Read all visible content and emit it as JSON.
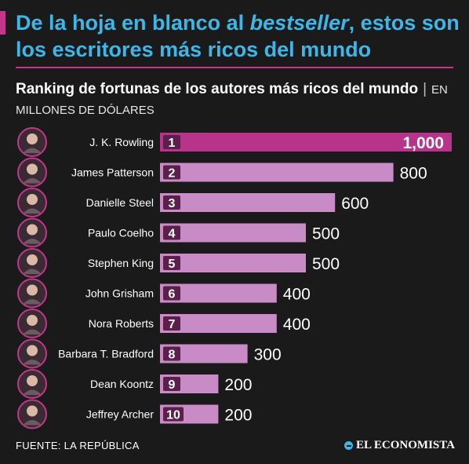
{
  "headline": {
    "part1": "De la hoja en blanco al ",
    "emphasis": "bestseller",
    "part2": ", estos son los escritores más ricos del mundo"
  },
  "subtitle": {
    "main": "Ranking de fortunas de los autores más ricos del mundo",
    "separator": "|",
    "unit": "EN MILLONES DE DÓLARES"
  },
  "colors": {
    "background": "#1a1a1a",
    "headline": "#3fb6e8",
    "accent": "#c2378a",
    "bar_top": "#b8338a",
    "bar": "#c98bc6",
    "rank_text": "#ffffff"
  },
  "chart_data": {
    "type": "bar",
    "orientation": "horizontal",
    "categories": [
      "J. K. Rowling",
      "James Patterson",
      "Danielle Steel",
      "Paulo Coelho",
      "Stephen King",
      "John Grisham",
      "Nora Roberts",
      "Barbara T. Bradford",
      "Dean Koontz",
      "Jeffrey Archer"
    ],
    "ranks": [
      "1",
      "2",
      "3",
      "4",
      "5",
      "6",
      "7",
      "8",
      "9",
      "10"
    ],
    "values": [
      1000,
      800,
      600,
      500,
      500,
      400,
      400,
      300,
      200,
      200
    ],
    "value_labels": [
      "1,000",
      "800",
      "600",
      "500",
      "500",
      "400",
      "400",
      "300",
      "200",
      "200"
    ],
    "xlim": [
      0,
      1000
    ]
  },
  "footer": {
    "source": "FUENTE: LA REPÚBLICA",
    "brand": "EL ECONOMISTA",
    "brand_icon": "el-economista-logo-icon"
  }
}
